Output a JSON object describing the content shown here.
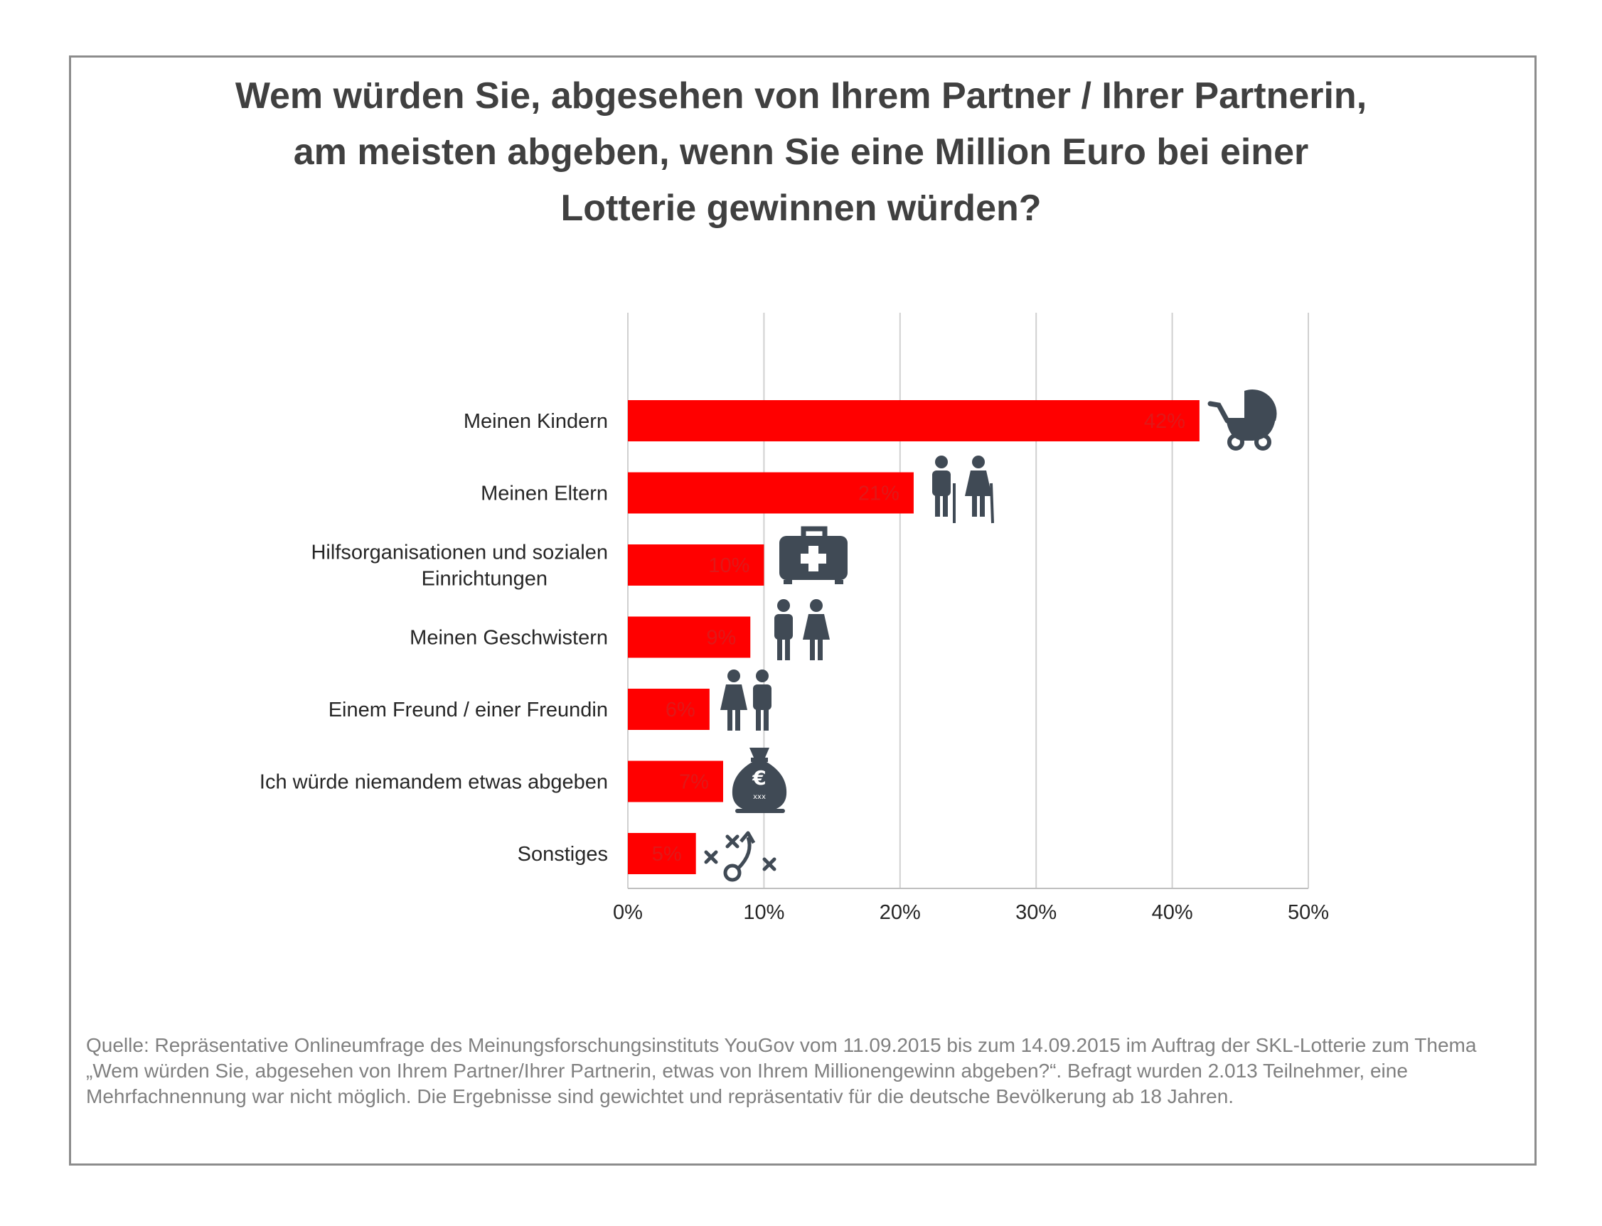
{
  "chart_data": {
    "type": "bar",
    "orientation": "horizontal",
    "title": "Wem würden Sie, abgesehen von Ihrem Partner / Ihrer Partnerin, am meisten abgeben, wenn Sie eine Million Euro bei einer Lotterie gewinnen würden?",
    "title_lines": [
      "Wem würden Sie, abgesehen von Ihrem Partner / Ihrer Partnerin,",
      "am meisten abgeben, wenn Sie eine Million Euro bei einer",
      "Lotterie gewinnen würden?"
    ],
    "categories": [
      "Meinen Kindern",
      "Meinen Eltern",
      "Hilfsorganisationen und sozialen Einrichtungen",
      "Meinen Geschwistern",
      "Einem Freund / einer Freundin",
      "Ich würde niemandem etwas abgeben",
      "Sonstiges"
    ],
    "category_lines": [
      [
        "Meinen Kindern"
      ],
      [
        "Meinen Eltern"
      ],
      [
        "Hilfsorganisationen und sozialen",
        "Einrichtungen"
      ],
      [
        "Meinen Geschwistern"
      ],
      [
        "Einem Freund / einer Freundin"
      ],
      [
        "Ich würde niemandem etwas abgeben"
      ],
      [
        "Sonstiges"
      ]
    ],
    "values": [
      42,
      21,
      10,
      9,
      6,
      7,
      5
    ],
    "value_labels": [
      "42%",
      "21%",
      "10%",
      "9%",
      "6%",
      "7%",
      "5%"
    ],
    "icons": [
      "stroller-icon",
      "elderly-couple-icon",
      "first-aid-kit-icon",
      "siblings-icon",
      "friends-icon",
      "money-bag-euro-icon",
      "strategy-plan-icon"
    ],
    "money_bag_text": [
      "€",
      "xxx"
    ],
    "xlim": [
      0,
      50
    ],
    "xticks": [
      0,
      10,
      20,
      30,
      40,
      50
    ],
    "xtick_labels": [
      "0%",
      "10%",
      "20%",
      "30%",
      "40%",
      "50%"
    ],
    "xlabel": "",
    "ylabel": "",
    "grid": true,
    "legend": "none",
    "bar_color": "#ff0000",
    "value_label_color": "#e01818",
    "icon_color": "#404a55"
  },
  "source_text": "Quelle: Repräsentative Onlineumfrage des Meinungsforschungsinstituts YouGov vom 11.09.2015 bis zum 14.09.2015 im Auftrag der SKL-Lotterie zum Thema „Wem würden Sie, abgesehen von Ihrem Partner/Ihrer Partnerin, etwas von Ihrem Millionengewinn abgeben?“. Befragt wurden 2.013 Teilnehmer, eine Mehrfachnennung war nicht möglich. Die Ergebnisse sind gewichtet und repräsentativ für die deutsche Bevölkerung ab 18 Jahren."
}
